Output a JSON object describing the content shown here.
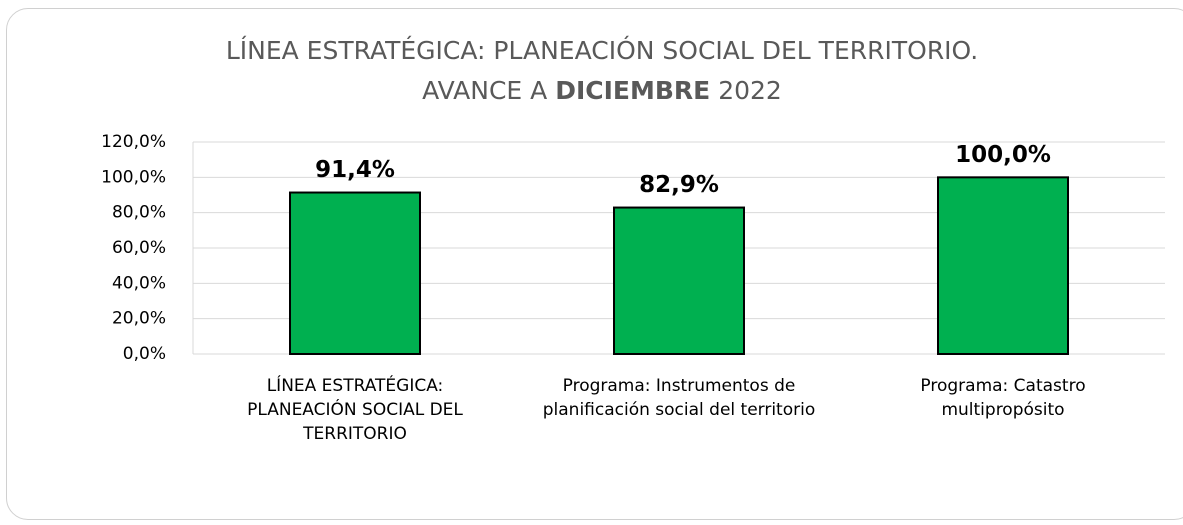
{
  "chart_data": {
    "type": "bar",
    "title": {
      "line1": "LÍNEA ESTRATÉGICA: PLANEACIÓN SOCIAL DEL TERRITORIO.",
      "line2": [
        "AVANCE A",
        "DICIEMBRE",
        "2022"
      ]
    },
    "categories": [
      "LÍNEA ESTRATÉGICA: PLANEACIÓN SOCIAL DEL TERRITORIO",
      "Programa: Instrumentos de planificación social del territorio",
      "Programa: Catastro multipropósito"
    ],
    "values": [
      91.4,
      82.9,
      100.0
    ],
    "value_labels": [
      "91,4%",
      "82,9%",
      "100,0%"
    ],
    "color": "#00b050",
    "ylim": [
      0,
      120
    ],
    "yticks": [
      {
        "value": 0,
        "label": "0,0%"
      },
      {
        "value": 20,
        "label": "20,0%"
      },
      {
        "value": 40,
        "label": "40,0%"
      },
      {
        "value": 60,
        "label": "60,0%"
      },
      {
        "value": 80,
        "label": "80,0%"
      },
      {
        "value": 100,
        "label": "100,0%"
      },
      {
        "value": 120,
        "label": "120,0%"
      }
    ],
    "grid": true
  }
}
